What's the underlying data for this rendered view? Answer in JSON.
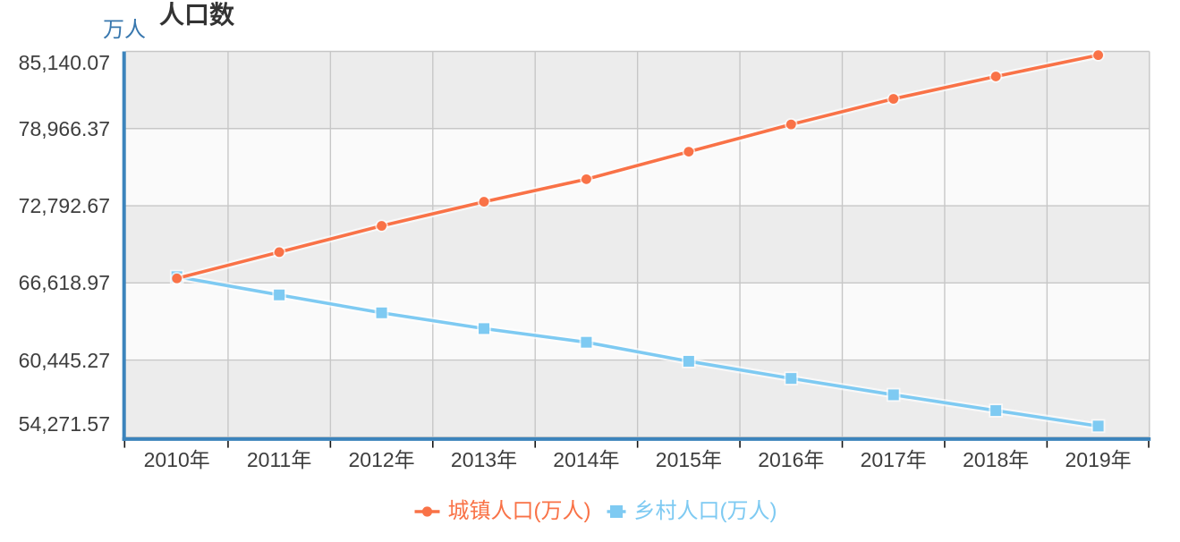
{
  "chart": {
    "title": "人口数",
    "y_axis_unit": "万人"
  },
  "chart_data": {
    "type": "line",
    "title": "人口数",
    "y_axis_unit": "万人",
    "categories": [
      "2010年",
      "2011年",
      "2012年",
      "2013年",
      "2014年",
      "2015年",
      "2016年",
      "2017年",
      "2018年",
      "2019年"
    ],
    "series": [
      {
        "name": "城镇人口(万人)",
        "color": "#F97247",
        "marker": "circle",
        "values": [
          66978,
          69079,
          71182,
          73111,
          74916,
          77116,
          79298,
          81347,
          83137,
          84843
        ]
      },
      {
        "name": "乡村人口(万人)",
        "color": "#7ECAF2",
        "marker": "square",
        "values": [
          67113,
          65656,
          64222,
          62961,
          61866,
          60346,
          58973,
          57661,
          56401,
          55162
        ]
      }
    ],
    "ylim": [
      54271.57,
      85140.07
    ],
    "y_tick_labels_top_to_bottom": [
      "85,140.07",
      "78,966.37",
      "72,792.67",
      "66,618.97",
      "60,445.27",
      "54,271.57"
    ],
    "y_tick_values": [
      85140.07,
      78966.37,
      72792.67,
      66618.97,
      60445.27,
      54271.57
    ],
    "grid": true,
    "legend_position": "bottom",
    "colors": {
      "axis_line": "#3C84BC",
      "band_dark": "#ECECEC",
      "band_light": "#FAFAFA",
      "grid_line": "#C7C7C7",
      "canvas_border": "#C6C6C6",
      "tick_mark": "#151515",
      "axis_label": "#3E3E3E",
      "title_color": "#333333",
      "unit_color": "#3877AE"
    }
  }
}
